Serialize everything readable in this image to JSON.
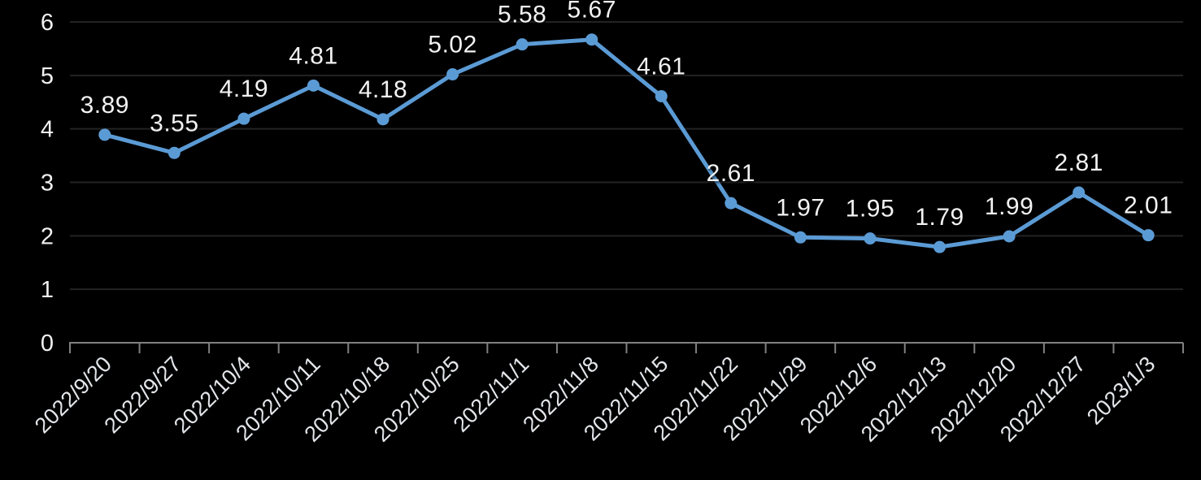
{
  "chart_data": {
    "type": "line",
    "categories": [
      "2022/9/20",
      "2022/9/27",
      "2022/10/4",
      "2022/10/11",
      "2022/10/18",
      "2022/10/25",
      "2022/11/1",
      "2022/11/8",
      "2022/11/15",
      "2022/11/22",
      "2022/11/29",
      "2022/12/6",
      "2022/12/13",
      "2022/12/20",
      "2022/12/27",
      "2023/1/3"
    ],
    "values": [
      3.89,
      3.55,
      4.19,
      4.81,
      4.18,
      5.02,
      5.58,
      5.67,
      4.61,
      2.61,
      1.97,
      1.95,
      1.79,
      1.99,
      2.81,
      2.01
    ],
    "data_labels": [
      "3.89",
      "3.55",
      "4.19",
      "4.81",
      "4.18",
      "5.02",
      "5.58",
      "5.67",
      "4.61",
      "2.61",
      "1.97",
      "1.95",
      "1.79",
      "1.99",
      "2.81",
      "2.01"
    ],
    "yticks": [
      "0",
      "1",
      "2",
      "3",
      "4",
      "5",
      "6"
    ],
    "ylim": [
      0,
      6
    ],
    "grid": true,
    "legend": false,
    "x_label_rotation_deg": -45,
    "colors": {
      "background": "#000000",
      "line": "#5B9BD5",
      "marker": "#5B9BD5",
      "gridline": "#232323",
      "axis": "#808080",
      "data_label_text": "#F2F2F2",
      "y_label_text": "#F0F0F0",
      "date_label_text": "#E3E6EA"
    }
  }
}
